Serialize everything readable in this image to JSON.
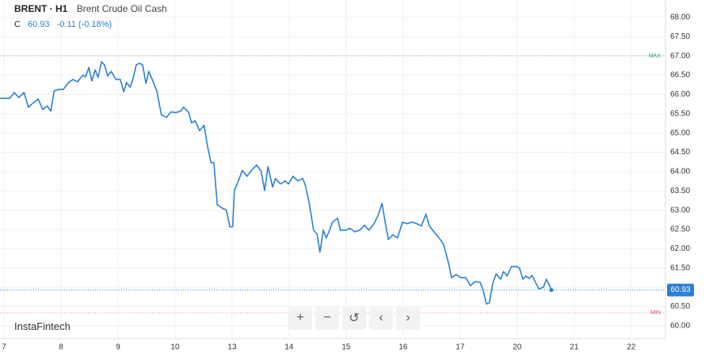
{
  "chart_data": {
    "type": "line",
    "symbol": "BRENT · H1",
    "title": "Brent Crude Oil Cash",
    "close_prefix": "C",
    "close": 60.93,
    "change": "-0.11 (-0.18%)",
    "watermark": "InstaFintech",
    "grid": true,
    "xlim": [
      -0.07,
      11.6
    ],
    "ylim": [
      59.67,
      68.45
    ],
    "xticks": [
      {
        "value": 0,
        "label": "7"
      },
      {
        "value": 1,
        "label": "8"
      },
      {
        "value": 2,
        "label": "9"
      },
      {
        "value": 3,
        "label": "10"
      },
      {
        "value": 4,
        "label": "13"
      },
      {
        "value": 5,
        "label": "14"
      },
      {
        "value": 6,
        "label": "15"
      },
      {
        "value": 7,
        "label": "16"
      },
      {
        "value": 8,
        "label": "17"
      },
      {
        "value": 9,
        "label": "20"
      },
      {
        "value": 10,
        "label": "21"
      },
      {
        "value": 11,
        "label": "22"
      }
    ],
    "yticks": [
      {
        "value": 60,
        "label": "60.00"
      },
      {
        "value": 60.5,
        "label": "60.50"
      },
      {
        "value": 61,
        "label": "61.00"
      },
      {
        "value": 61.5,
        "label": "61.50"
      },
      {
        "value": 62,
        "label": "62.00"
      },
      {
        "value": 62.5,
        "label": "62.50"
      },
      {
        "value": 63,
        "label": "63.00"
      },
      {
        "value": 63.5,
        "label": "63.50"
      },
      {
        "value": 64,
        "label": "64.00"
      },
      {
        "value": 64.5,
        "label": "64.50"
      },
      {
        "value": 65,
        "label": "65.00"
      },
      {
        "value": 65.5,
        "label": "65.50"
      },
      {
        "value": 66,
        "label": "66.00"
      },
      {
        "value": 66.5,
        "label": "66.50"
      },
      {
        "value": 67,
        "label": "67.00"
      },
      {
        "value": 67.5,
        "label": "67.50"
      },
      {
        "value": 68,
        "label": "68.00"
      }
    ],
    "max_line": {
      "label": "MAX",
      "value": 67,
      "color": "#2e9e5b"
    },
    "min_line": {
      "label": "MIN",
      "value": 60.34,
      "color": "#e05050"
    },
    "x": [
      -0.07,
      0.1,
      0.18,
      0.26,
      0.35,
      0.43,
      0.51,
      0.6,
      0.68,
      0.76,
      0.82,
      0.88,
      0.96,
      1.04,
      1.13,
      1.21,
      1.29,
      1.38,
      1.43,
      1.49,
      1.54,
      1.6,
      1.65,
      1.71,
      1.76,
      1.82,
      1.88,
      1.96,
      2.04,
      2.1,
      2.15,
      2.21,
      2.26,
      2.32,
      2.38,
      2.43,
      2.49,
      2.54,
      2.6,
      2.68,
      2.76,
      2.85,
      2.93,
      3.01,
      3.1,
      3.15,
      3.24,
      3.29,
      3.35,
      3.43,
      3.51,
      3.57,
      3.63,
      3.68,
      3.74,
      3.82,
      3.9,
      3.96,
      4.01,
      4.04,
      4.1,
      4.18,
      4.26,
      4.35,
      4.43,
      4.51,
      4.57,
      4.63,
      4.71,
      4.76,
      4.85,
      4.93,
      4.99,
      5.07,
      5.15,
      5.24,
      5.29,
      5.35,
      5.43,
      5.49,
      5.54,
      5.6,
      5.65,
      5.71,
      5.76,
      5.85,
      5.9,
      5.99,
      6.07,
      6.15,
      6.24,
      6.32,
      6.4,
      6.49,
      6.57,
      6.63,
      6.68,
      6.74,
      6.82,
      6.9,
      6.99,
      7.07,
      7.15,
      7.24,
      7.32,
      7.4,
      7.46,
      7.54,
      7.63,
      7.71,
      7.79,
      7.85,
      7.93,
      8.01,
      8.1,
      8.18,
      8.26,
      8.35,
      8.4,
      8.46,
      8.51,
      8.57,
      8.63,
      8.71,
      8.76,
      8.82,
      8.9,
      8.99,
      9.04,
      9.1,
      9.15,
      9.21,
      9.26,
      9.32,
      9.38,
      9.46,
      9.51,
      9.57,
      9.6
    ],
    "series": [
      {
        "name": "BRENT",
        "color": "#2b7fd4",
        "values": [
          65.9,
          65.9,
          66.05,
          65.92,
          66.05,
          65.67,
          65.78,
          65.88,
          65.61,
          65.7,
          65.57,
          66.09,
          66.13,
          66.13,
          66.31,
          66.39,
          66.33,
          66.5,
          66.46,
          66.7,
          66.35,
          66.64,
          66.44,
          66.85,
          66.77,
          66.48,
          66.6,
          66.39,
          66.39,
          66.07,
          66.31,
          66.19,
          66.39,
          66.77,
          66.81,
          66.77,
          66.29,
          66.6,
          66.39,
          66.09,
          65.47,
          65.41,
          65.55,
          65.53,
          65.57,
          65.67,
          65.53,
          65.26,
          65.32,
          65.06,
          65.2,
          64.65,
          64.23,
          64.23,
          63.14,
          63.06,
          63.0,
          62.57,
          62.57,
          63.51,
          63.72,
          64.03,
          63.88,
          64.05,
          64.17,
          64.01,
          63.51,
          64.13,
          63.6,
          63.82,
          63.68,
          63.76,
          63.68,
          63.88,
          63.76,
          63.82,
          63.62,
          63.2,
          62.48,
          62.38,
          61.91,
          62.48,
          62.28,
          62.48,
          62.69,
          62.79,
          62.48,
          62.48,
          62.53,
          62.44,
          62.48,
          62.61,
          62.48,
          62.65,
          62.9,
          63.18,
          62.73,
          62.24,
          62.36,
          62.28,
          62.69,
          62.65,
          62.69,
          62.65,
          62.59,
          62.9,
          62.59,
          62.44,
          62.28,
          62.11,
          61.66,
          61.25,
          61.33,
          61.25,
          61.25,
          61.04,
          61.15,
          61.13,
          60.94,
          60.57,
          60.59,
          61.09,
          61.35,
          61.21,
          61.41,
          61.29,
          61.54,
          61.54,
          61.5,
          61.21,
          61.29,
          61.23,
          61.31,
          61.13,
          60.96,
          61.0,
          61.21,
          61.04,
          60.93
        ]
      }
    ]
  }
}
